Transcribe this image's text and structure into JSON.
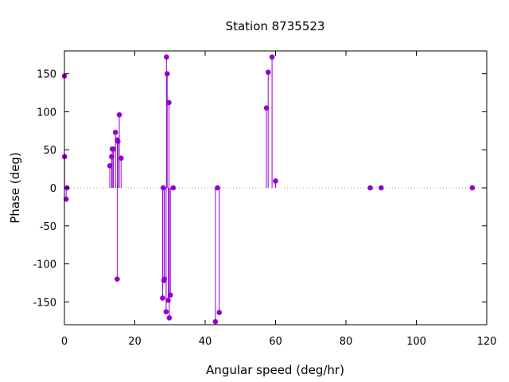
{
  "chart_data": {
    "type": "scatter",
    "style": "impulses-from-zero",
    "title": "Station 8735523",
    "xlabel": "Angular speed (deg/hr)",
    "ylabel": "Phase (deg)",
    "xlim": [
      0,
      120
    ],
    "ylim": [
      -180,
      180
    ],
    "xticks": [
      0,
      20,
      40,
      60,
      80,
      100,
      120
    ],
    "yticks": [
      -150,
      -100,
      -50,
      0,
      50,
      100,
      150
    ],
    "zero_line": "dotted",
    "grid": false,
    "color": "#9400d3",
    "series": [
      {
        "x": [
          0.0,
          0.04,
          0.5,
          0.75,
          12.9,
          13.4,
          13.6,
          13.9,
          14.5,
          15.0,
          15.04,
          15.2,
          15.6,
          16.1,
          27.9,
          28.1,
          28.3,
          28.4,
          28.9,
          29.0,
          29.2,
          29.5,
          29.7,
          29.8,
          30.1,
          30.9,
          42.9,
          43.5,
          44.0,
          57.4,
          57.9,
          59.0,
          60.0,
          86.9,
          90.0,
          115.9
        ],
        "y": [
          147,
          41,
          -15,
          0,
          29,
          41,
          51,
          51,
          73,
          -120,
          63,
          61,
          96,
          39,
          -145,
          0,
          -122,
          -120,
          -163,
          172,
          150,
          -148,
          112,
          -171,
          -141,
          0,
          -176,
          0,
          -164,
          105,
          152,
          172,
          9,
          0,
          0,
          0
        ]
      }
    ]
  }
}
